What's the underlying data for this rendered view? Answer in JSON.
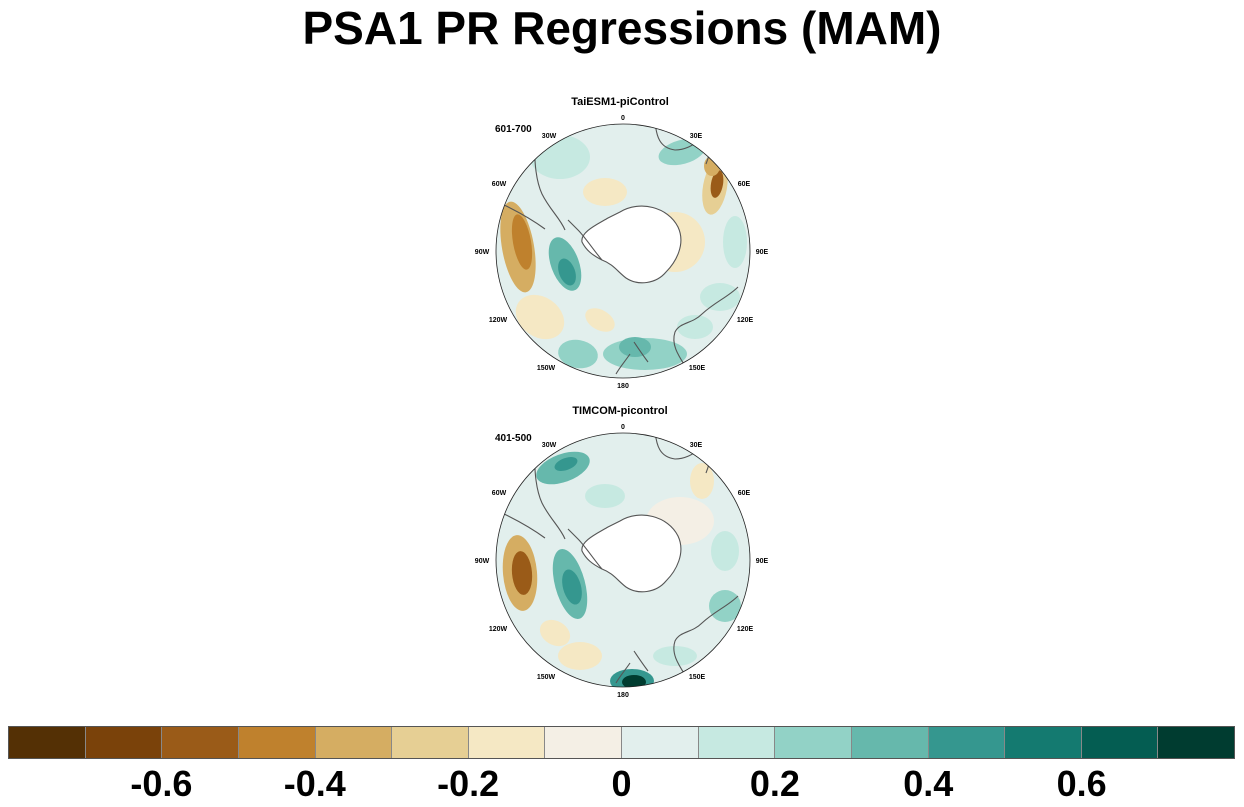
{
  "title": "PSA1 PR Regressions (MAM)",
  "panels": [
    {
      "title": "TaiESM1-piControl",
      "period": "601-700",
      "lon_labels": [
        "0",
        "30E",
        "60E",
        "90E",
        "120E",
        "150E",
        "180",
        "150W",
        "120W",
        "90W",
        "60W",
        "30W"
      ]
    },
    {
      "title": "TIMCOM-picontrol",
      "period": "401-500",
      "lon_labels": [
        "0",
        "30E",
        "60E",
        "90E",
        "120E",
        "150E",
        "180",
        "150W",
        "120W",
        "90W",
        "60W",
        "30W"
      ]
    }
  ],
  "chart_data": [
    {
      "type": "heatmap",
      "title": "TaiESM1-piControl",
      "projection": "south polar stereographic",
      "colorscale": "BrBG",
      "value_range": [
        -0.7,
        0.7
      ],
      "dominant_features": [
        {
          "region": "west of Antarctic Peninsula (80W-120W)",
          "sign": "negative",
          "approx_value": -0.4
        },
        {
          "region": "Amundsen / Bellingshausen Sea",
          "sign": "positive",
          "approx_value": 0.3
        },
        {
          "region": "south of New Zealand (~160E-180)",
          "sign": "positive",
          "approx_value": 0.3
        },
        {
          "region": "South Indian Ocean (~50E-60E)",
          "sign": "negative",
          "approx_value": -0.4
        }
      ]
    },
    {
      "type": "heatmap",
      "title": "TIMCOM-picontrol",
      "projection": "south polar stereographic",
      "colorscale": "BrBG",
      "value_range": [
        -0.7,
        0.7
      ],
      "dominant_features": [
        {
          "region": "west of Antarctic Peninsula (90W-110W)",
          "sign": "negative",
          "approx_value": -0.5
        },
        {
          "region": "Amundsen / Bellingshausen Sea",
          "sign": "positive",
          "approx_value": 0.4
        },
        {
          "region": "near 180 longitude",
          "sign": "positive",
          "approx_value": 0.7
        },
        {
          "region": "South Atlantic (~30W)",
          "sign": "positive",
          "approx_value": 0.3
        }
      ]
    }
  ],
  "colorbar": {
    "colors": [
      "#543005",
      "#7a420a",
      "#9a5b18",
      "#bf812d",
      "#d5ad62",
      "#e6cf94",
      "#f5e8c4",
      "#f4efe5",
      "#e2efed",
      "#c6e9e1",
      "#92d2c6",
      "#66b8ac",
      "#35978f",
      "#147a70",
      "#045d52",
      "#003c30"
    ],
    "tick_labels": [
      "-0.6",
      "-0.4",
      "-0.2",
      "0",
      "0.2",
      "0.4",
      "0.6"
    ]
  }
}
